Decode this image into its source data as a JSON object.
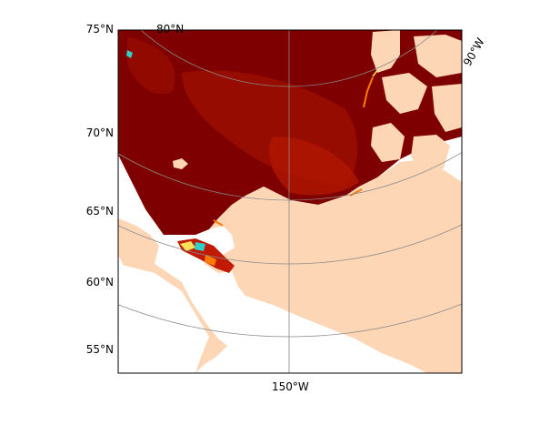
{
  "map": {
    "latitude_labels": [
      "75°N",
      "70°N",
      "65°N",
      "60°N",
      "55°N"
    ],
    "top_latitude_label": "80°N",
    "longitude_labels": [
      "150°W",
      "90°W"
    ],
    "colors": {
      "land": "#fcd6b5",
      "ocean_dark": "#7f0000",
      "ocean_mid": "#9a0d00",
      "ocean_light": "#c01a00",
      "edge_orange": "#ff7a00",
      "edge_yellow": "#ffe15a",
      "edge_cyan": "#30d0c8",
      "grid": "#8a8a8a",
      "frame": "#000000"
    }
  }
}
